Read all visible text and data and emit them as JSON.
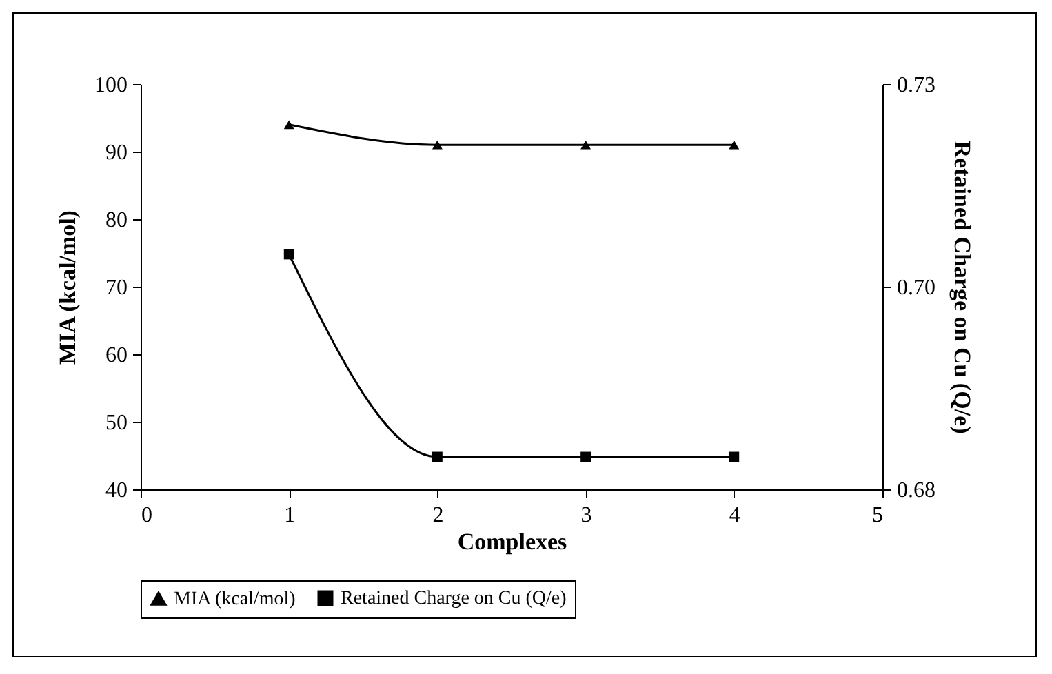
{
  "chart_data": {
    "type": "line",
    "xlabel": "Complexes",
    "ylabel": "MIA (kcal/mol)",
    "y2label": "Retained Charge on Cu (Q/e)",
    "x": [
      1,
      2,
      3,
      4
    ],
    "xlim": [
      0,
      5
    ],
    "xticks": [
      0,
      1,
      2,
      3,
      4,
      5
    ],
    "ylim": [
      40,
      100
    ],
    "yticks": [
      40,
      50,
      60,
      70,
      80,
      90,
      100
    ],
    "y2lim": [
      0.68,
      0.73
    ],
    "y2ticks": [
      0.68,
      {
        "value": 0.705,
        "label": "0.70"
      },
      0.73
    ],
    "series": [
      {
        "name": "MIA (kcal/mol)",
        "color": "#000000",
        "marker": "triangle",
        "values": [
          94,
          91,
          91,
          91
        ]
      },
      {
        "name": "Retained Charge on Cu (Q/e)",
        "color": "#000000",
        "marker": "square",
        "axis": "y2",
        "values": [
          0.709,
          0.684,
          0.684,
          0.684
        ]
      }
    ],
    "legend": "bottom",
    "grid": false,
    "line_style": "solid"
  }
}
